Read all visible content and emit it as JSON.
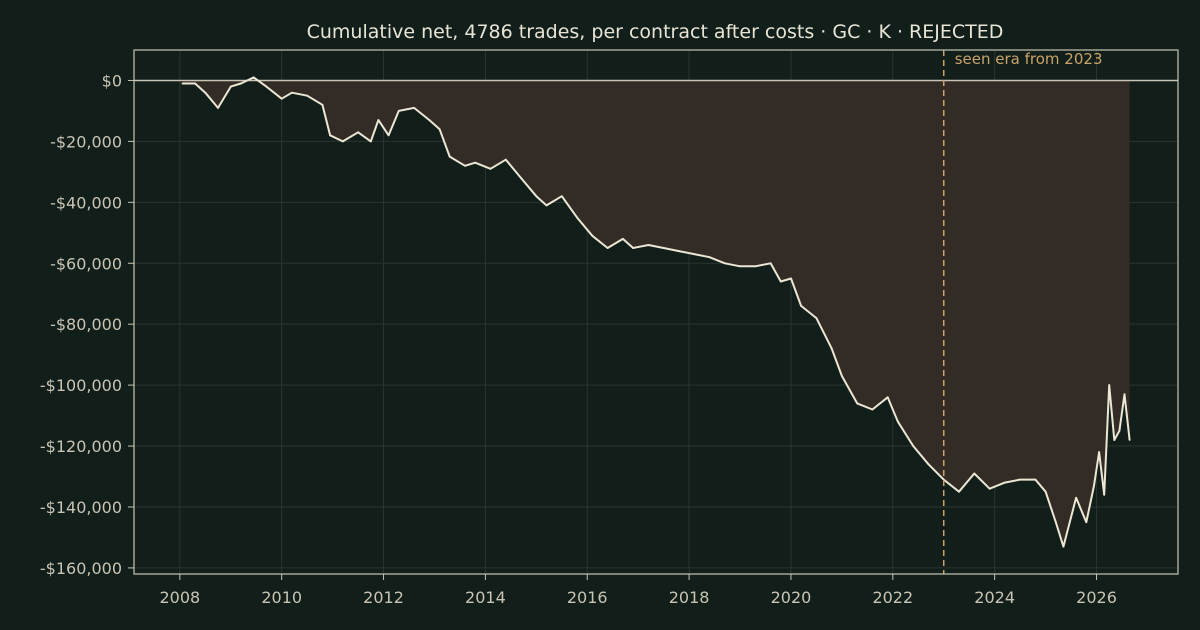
{
  "chart_data": {
    "type": "line",
    "title": "Cumulative net, 4786 trades, per contract after costs  ·  GC · K · REJECTED",
    "xlabel": "",
    "ylabel": "",
    "xlim": [
      2007.1,
      2027.6
    ],
    "ylim": [
      -162000,
      10000
    ],
    "x_ticks": [
      2008,
      2010,
      2012,
      2014,
      2016,
      2018,
      2020,
      2022,
      2024,
      2026
    ],
    "x_tick_labels": [
      "2008",
      "2010",
      "2012",
      "2014",
      "2016",
      "2018",
      "2020",
      "2022",
      "2024",
      "2026"
    ],
    "y_ticks": [
      0,
      -20000,
      -40000,
      -60000,
      -80000,
      -100000,
      -120000,
      -140000,
      -160000
    ],
    "y_tick_labels": [
      "$0",
      "-$20,000",
      "-$40,000",
      "-$60,000",
      "-$80,000",
      "-$100,000",
      "-$120,000",
      "-$140,000",
      "-$160,000"
    ],
    "grid": true,
    "zero_line": 0,
    "drawdown_fill": true,
    "annotation": {
      "x": 2023.0,
      "text": "seen era from 2023"
    },
    "colors": {
      "background": "#111e19",
      "line": "#ece6d4",
      "fill": "#332c26",
      "grid": "#2b3530",
      "axis": "#c9c4b4",
      "annotation": "#c9a46a"
    },
    "series": [
      {
        "x": [
          2008.05,
          2008.3,
          2008.5,
          2008.75,
          2009.0,
          2009.2,
          2009.45,
          2009.7,
          2010.0,
          2010.2,
          2010.5,
          2010.8,
          2010.95,
          2011.2,
          2011.5,
          2011.75,
          2011.9,
          2012.1,
          2012.3,
          2012.6,
          2012.9,
          2013.1,
          2013.3,
          2013.6,
          2013.8,
          2014.1,
          2014.4,
          2014.7,
          2015.0,
          2015.2,
          2015.5,
          2015.8,
          2016.1,
          2016.4,
          2016.7,
          2016.9,
          2017.2,
          2017.5,
          2017.8,
          2018.1,
          2018.4,
          2018.7,
          2019.0,
          2019.3,
          2019.6,
          2019.8,
          2020.0,
          2020.2,
          2020.5,
          2020.8,
          2021.0,
          2021.3,
          2021.6,
          2021.9,
          2022.1,
          2022.4,
          2022.7,
          2023.0,
          2023.3,
          2023.6,
          2023.9,
          2024.2,
          2024.5,
          2024.8,
          2025.0,
          2025.2,
          2025.35,
          2025.6,
          2025.8,
          2025.95,
          2026.05,
          2026.15,
          2026.25,
          2026.35,
          2026.45,
          2026.55,
          2026.65
        ],
        "values": [
          -1000,
          -1000,
          -4000,
          -9000,
          -2000,
          -1000,
          1000,
          -2000,
          -6000,
          -4000,
          -5000,
          -8000,
          -18000,
          -20000,
          -17000,
          -20000,
          -13000,
          -18000,
          -10000,
          -9000,
          -13000,
          -16000,
          -25000,
          -28000,
          -27000,
          -29000,
          -26000,
          -32000,
          -38000,
          -41000,
          -38000,
          -45000,
          -51000,
          -55000,
          -52000,
          -55000,
          -54000,
          -55000,
          -56000,
          -57000,
          -58000,
          -60000,
          -61000,
          -61000,
          -60000,
          -66000,
          -65000,
          -74000,
          -78000,
          -88000,
          -97000,
          -106000,
          -108000,
          -104000,
          -112000,
          -120000,
          -126000,
          -131000,
          -135000,
          -129000,
          -134000,
          -132000,
          -131000,
          -131000,
          -135000,
          -145000,
          -153000,
          -137000,
          -145000,
          -133000,
          -122000,
          -136000,
          -100000,
          -118000,
          -115000,
          -103000,
          -118000
        ]
      }
    ]
  }
}
